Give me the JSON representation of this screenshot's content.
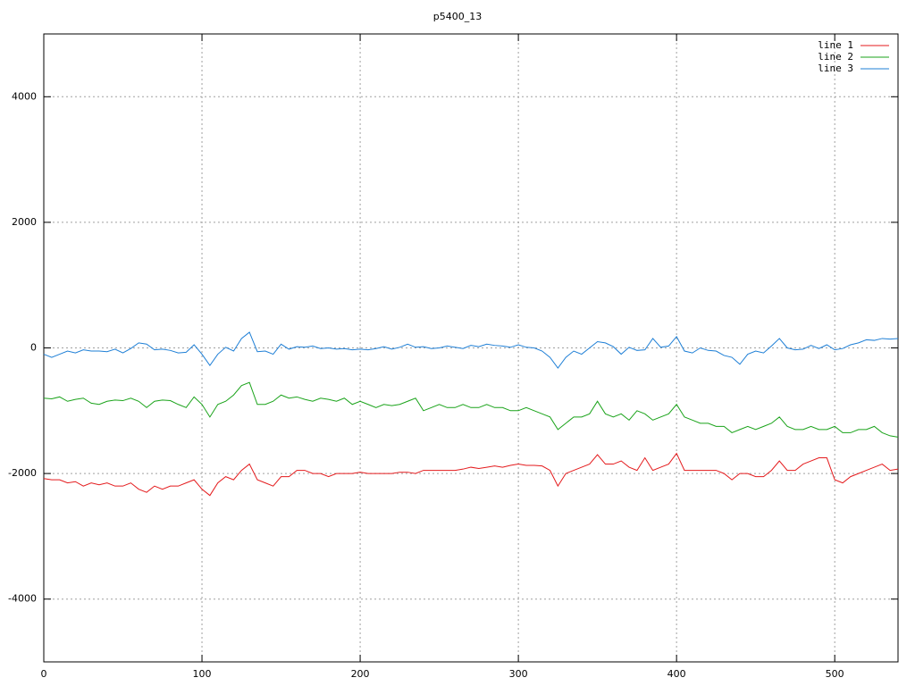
{
  "chart_data": {
    "type": "line",
    "title": "p5400_13",
    "x": [
      0,
      5,
      10,
      15,
      20,
      25,
      30,
      35,
      40,
      45,
      50,
      55,
      60,
      65,
      70,
      75,
      80,
      85,
      90,
      95,
      100,
      105,
      110,
      115,
      120,
      125,
      130,
      135,
      140,
      145,
      150,
      155,
      160,
      165,
      170,
      175,
      180,
      185,
      190,
      195,
      200,
      205,
      210,
      215,
      220,
      225,
      230,
      235,
      240,
      245,
      250,
      255,
      260,
      265,
      270,
      275,
      280,
      285,
      290,
      295,
      300,
      305,
      310,
      315,
      320,
      325,
      330,
      335,
      340,
      345,
      350,
      355,
      360,
      365,
      370,
      375,
      380,
      385,
      390,
      395,
      400,
      405,
      410,
      415,
      420,
      425,
      430,
      435,
      440,
      445,
      450,
      455,
      460,
      465,
      470,
      475,
      480,
      485,
      490,
      495,
      500,
      505,
      510,
      515,
      520,
      525,
      530,
      535,
      540
    ],
    "series": [
      {
        "name": "line 1",
        "color": "#e41a1c",
        "values": [
          -2080,
          -2100,
          -2100,
          -2150,
          -2130,
          -2200,
          -2150,
          -2180,
          -2150,
          -2200,
          -2200,
          -2150,
          -2250,
          -2300,
          -2200,
          -2250,
          -2200,
          -2200,
          -2150,
          -2100,
          -2250,
          -2350,
          -2150,
          -2050,
          -2100,
          -1950,
          -1850,
          -2100,
          -2150,
          -2200,
          -2050,
          -2050,
          -1950,
          -1950,
          -2000,
          -2000,
          -2050,
          -2000,
          -2000,
          -2000,
          -1980,
          -2000,
          -2000,
          -2000,
          -2000,
          -1980,
          -1980,
          -2000,
          -1950,
          -1950,
          -1950,
          -1950,
          -1950,
          -1930,
          -1900,
          -1920,
          -1900,
          -1880,
          -1900,
          -1870,
          -1850,
          -1870,
          -1870,
          -1880,
          -1950,
          -2200,
          -2000,
          -1950,
          -1900,
          -1850,
          -1700,
          -1850,
          -1850,
          -1800,
          -1900,
          -1950,
          -1750,
          -1950,
          -1900,
          -1850,
          -1680,
          -1950,
          -1950,
          -1950,
          -1950,
          -1950,
          -2000,
          -2100,
          -2000,
          -2000,
          -2050,
          -2050,
          -1950,
          -1800,
          -1950,
          -1950,
          -1850,
          -1800,
          -1750,
          -1750,
          -2100,
          -2150,
          -2050,
          -2000,
          -1950,
          -1900,
          -1850,
          -1950,
          -1930
        ]
      },
      {
        "name": "line 2",
        "color": "#1aa31a",
        "values": [
          -800,
          -810,
          -780,
          -850,
          -820,
          -800,
          -880,
          -900,
          -850,
          -830,
          -840,
          -800,
          -850,
          -950,
          -850,
          -830,
          -840,
          -900,
          -950,
          -780,
          -900,
          -1100,
          -900,
          -850,
          -750,
          -600,
          -550,
          -900,
          -900,
          -850,
          -750,
          -800,
          -780,
          -820,
          -850,
          -800,
          -820,
          -850,
          -800,
          -900,
          -850,
          -900,
          -950,
          -900,
          -920,
          -900,
          -850,
          -800,
          -1000,
          -950,
          -900,
          -950,
          -950,
          -900,
          -950,
          -950,
          -900,
          -950,
          -950,
          -1000,
          -1000,
          -950,
          -1000,
          -1050,
          -1100,
          -1300,
          -1200,
          -1100,
          -1100,
          -1050,
          -850,
          -1050,
          -1100,
          -1050,
          -1150,
          -1000,
          -1050,
          -1150,
          -1100,
          -1050,
          -900,
          -1100,
          -1150,
          -1200,
          -1200,
          -1250,
          -1250,
          -1350,
          -1300,
          -1250,
          -1300,
          -1250,
          -1200,
          -1100,
          -1250,
          -1300,
          -1300,
          -1250,
          -1300,
          -1300,
          -1250,
          -1350,
          -1350,
          -1300,
          -1300,
          -1250,
          -1350,
          -1400,
          -1420
        ]
      },
      {
        "name": "line 3",
        "color": "#1e7fd6",
        "values": [
          -100,
          -150,
          -100,
          -50,
          -80,
          -30,
          -50,
          -50,
          -60,
          -20,
          -80,
          -10,
          80,
          60,
          -30,
          -20,
          -40,
          -80,
          -70,
          50,
          -100,
          -280,
          -100,
          10,
          -50,
          150,
          250,
          -60,
          -50,
          -100,
          60,
          -20,
          20,
          10,
          30,
          -10,
          0,
          -20,
          -10,
          -30,
          -20,
          -30,
          -10,
          20,
          -20,
          10,
          60,
          10,
          20,
          -10,
          0,
          30,
          10,
          -10,
          40,
          20,
          60,
          40,
          30,
          10,
          50,
          10,
          0,
          -50,
          -150,
          -320,
          -150,
          -50,
          -100,
          0,
          100,
          80,
          20,
          -100,
          10,
          -40,
          -30,
          150,
          10,
          30,
          180,
          -50,
          -80,
          0,
          -40,
          -50,
          -120,
          -150,
          -260,
          -100,
          -50,
          -80,
          30,
          150,
          0,
          -30,
          -20,
          40,
          -10,
          50,
          -30,
          -10,
          50,
          80,
          130,
          120,
          150,
          140,
          150
        ]
      }
    ],
    "xlim": [
      0,
      540
    ],
    "ylim": [
      -5000,
      5000
    ],
    "xticks": [
      0,
      100,
      200,
      300,
      400,
      500
    ],
    "yticks": [
      -4000,
      -2000,
      0,
      2000,
      4000
    ],
    "grid": true,
    "legend": "top-right"
  }
}
